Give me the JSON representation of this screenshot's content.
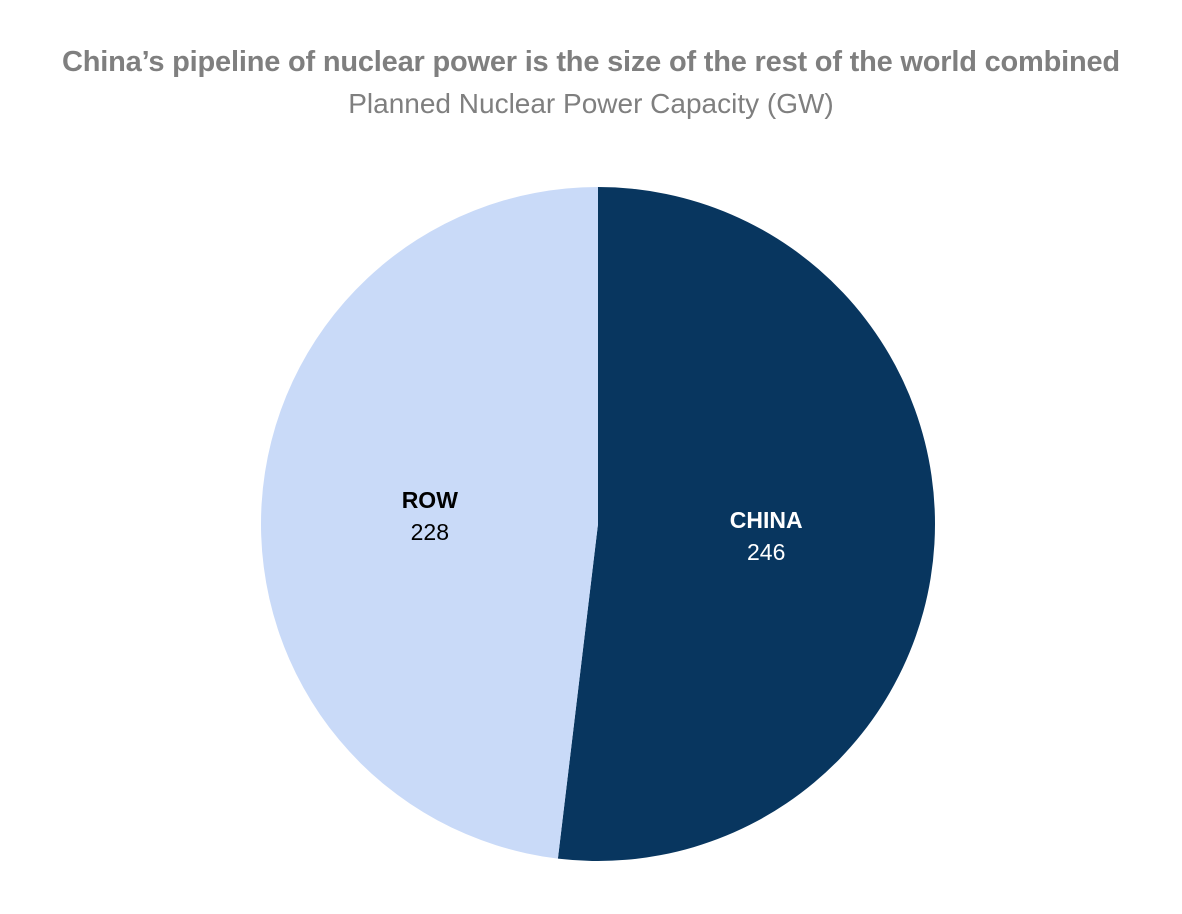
{
  "chart_data": {
    "type": "pie",
    "title": "China’s pipeline of nuclear power is the size of the rest of the world combined",
    "subtitle": "Planned Nuclear Power Capacity (GW)",
    "slices": [
      {
        "label": "CHINA",
        "value": 246,
        "color": "#08365f",
        "text_color": "#ffffff"
      },
      {
        "label": "ROW",
        "value": 228,
        "color": "#c9daf8",
        "text_color": "#000000"
      }
    ],
    "start_angle_deg": 0,
    "direction": "clockwise",
    "legend": "none"
  }
}
